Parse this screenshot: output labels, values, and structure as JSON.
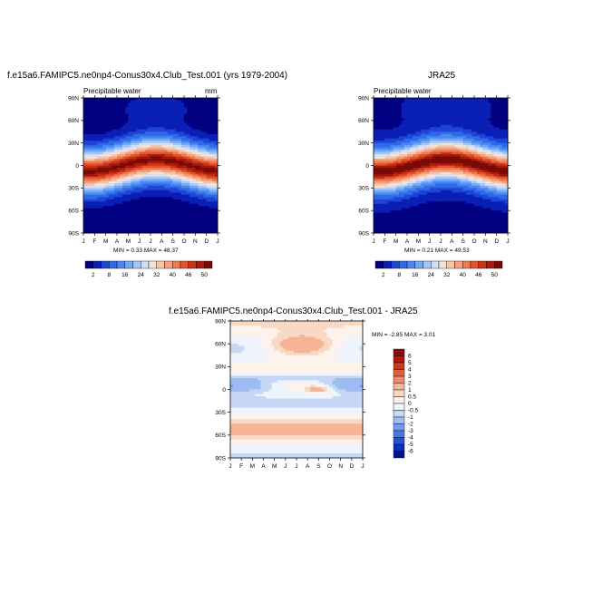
{
  "chart_data": [
    {
      "type": "heatmap",
      "title": "f.e15a6.FAMIPC5.ne0np4-Conus30x4.Club_Test.001 (yrs 1979-2004)",
      "subtitle_left": "Precipitable water",
      "subtitle_right": "mm",
      "x_ticks": [
        "J",
        "F",
        "M",
        "A",
        "M",
        "J",
        "J",
        "A",
        "S",
        "O",
        "N",
        "D",
        "J"
      ],
      "y_ticks": [
        "90N",
        "60N",
        "30N",
        "0",
        "30S",
        "60S",
        "90S"
      ],
      "min_label": "MIN =",
      "min_value": "0.33",
      "max_label": "MAX =",
      "max_value": "48.37",
      "colorbar": {
        "orientation": "horizontal",
        "labels": [
          "2",
          "8",
          "16",
          "24",
          "32",
          "40",
          "46",
          "50"
        ],
        "colors": [
          "#000080",
          "#0a1fb5",
          "#1f45d6",
          "#2f6ae8",
          "#4a8af0",
          "#73a8f5",
          "#a3c6f8",
          "#cfe0fa",
          "#f6e2d6",
          "#f8c3a8",
          "#f5a07a",
          "#ee7a50",
          "#e0552e",
          "#c93418",
          "#a81a0c",
          "#7a0a05"
        ]
      }
    },
    {
      "type": "heatmap",
      "title": "JRA25",
      "subtitle_left": "Precipitable water",
      "subtitle_right": "",
      "x_ticks": [
        "J",
        "F",
        "M",
        "A",
        "M",
        "J",
        "J",
        "A",
        "S",
        "O",
        "N",
        "D",
        "J"
      ],
      "y_ticks": [
        "90N",
        "60N",
        "30N",
        "0",
        "30S",
        "60S",
        "90S"
      ],
      "min_label": "MIN =",
      "min_value": "0.21",
      "max_label": "MAX =",
      "max_value": "49.53",
      "colorbar": {
        "orientation": "horizontal",
        "labels": [
          "2",
          "8",
          "16",
          "24",
          "32",
          "40",
          "46",
          "50"
        ],
        "colors": [
          "#000080",
          "#0a1fb5",
          "#1f45d6",
          "#2f6ae8",
          "#4a8af0",
          "#73a8f5",
          "#a3c6f8",
          "#cfe0fa",
          "#f6e2d6",
          "#f8c3a8",
          "#f5a07a",
          "#ee7a50",
          "#e0552e",
          "#c93418",
          "#a81a0c",
          "#7a0a05"
        ]
      }
    },
    {
      "type": "heatmap",
      "title": "f.e15a6.FAMIPC5.ne0np4-Conus30x4.Club_Test.001 - JRA25",
      "x_ticks": [
        "J",
        "F",
        "M",
        "A",
        "M",
        "J",
        "J",
        "A",
        "S",
        "O",
        "N",
        "D",
        "J"
      ],
      "y_ticks": [
        "90N",
        "60N",
        "30N",
        "0",
        "30S",
        "60S",
        "90S"
      ],
      "min_label": "MIN =",
      "min_value": "-2.85",
      "max_label": "MAX =",
      "max_value": "3.01",
      "colorbar": {
        "orientation": "vertical",
        "labels": [
          "6",
          "5",
          "4",
          "3",
          "2",
          "1",
          "0.5",
          "0",
          "-0.5",
          "-1",
          "-2",
          "-3",
          "-4",
          "-5",
          "-6"
        ],
        "colors": [
          "#8b0c05",
          "#b01a0c",
          "#cc3a1c",
          "#e0603c",
          "#ef8a66",
          "#f5b495",
          "#f9d8c4",
          "#fdf2ec",
          "#eef3fc",
          "#c6d8f6",
          "#9dbcf2",
          "#6f9bec",
          "#4679e2",
          "#2553d4",
          "#0e30b8",
          "#001489"
        ]
      }
    }
  ]
}
